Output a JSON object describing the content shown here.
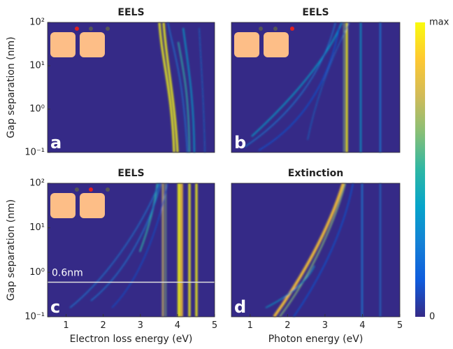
{
  "chart_data": [
    {
      "type": "heatmap",
      "title": "EELS",
      "panel_label": "a",
      "ylabel": "Gap separation (nm)",
      "xlim": [
        0.5,
        5
      ],
      "ylim": [
        0.1,
        100
      ],
      "yscale": "log",
      "yticks": [
        {
          "value": 0.1,
          "label": "10⁻¹"
        },
        {
          "value": 1,
          "label": "10⁰"
        },
        {
          "value": 10,
          "label": "10¹"
        },
        {
          "value": 100,
          "label": "10²"
        }
      ]
    },
    {
      "type": "heatmap",
      "title": "EELS",
      "panel_label": "b",
      "xlim": [
        0.5,
        5
      ],
      "ylim": [
        0.1,
        100
      ],
      "yscale": "log"
    },
    {
      "type": "heatmap",
      "title": "EELS",
      "panel_label": "c",
      "xlabel": "Electron loss energy (eV)",
      "ylabel": "Gap separation (nm)",
      "xlim": [
        0.5,
        5
      ],
      "ylim": [
        0.1,
        100
      ],
      "yscale": "log",
      "xticks": [
        1,
        2,
        3,
        4,
        5
      ],
      "yticks": [
        {
          "value": 0.1,
          "label": "10⁻¹"
        },
        {
          "value": 1,
          "label": "10⁰"
        },
        {
          "value": 10,
          "label": "10¹"
        },
        {
          "value": 100,
          "label": "10²"
        }
      ],
      "annotations": [
        {
          "text": "0.6nm",
          "y": 0.6
        }
      ]
    },
    {
      "type": "heatmap",
      "title": "Extinction",
      "panel_label": "d",
      "xlabel": "Photon energy (eV)",
      "xlim": [
        0.5,
        5
      ],
      "ylim": [
        0.1,
        100
      ],
      "yscale": "log",
      "xticks": [
        1,
        2,
        3,
        4,
        5
      ]
    },
    {
      "type": "colorbar",
      "min_label": "0",
      "max_label": "max",
      "colors": [
        "#352a87",
        "#0f5cdd",
        "#1481d6",
        "#06a4ca",
        "#2eb7a4",
        "#87bf77",
        "#d1bb59",
        "#fec832",
        "#f9fb0e"
      ]
    }
  ]
}
